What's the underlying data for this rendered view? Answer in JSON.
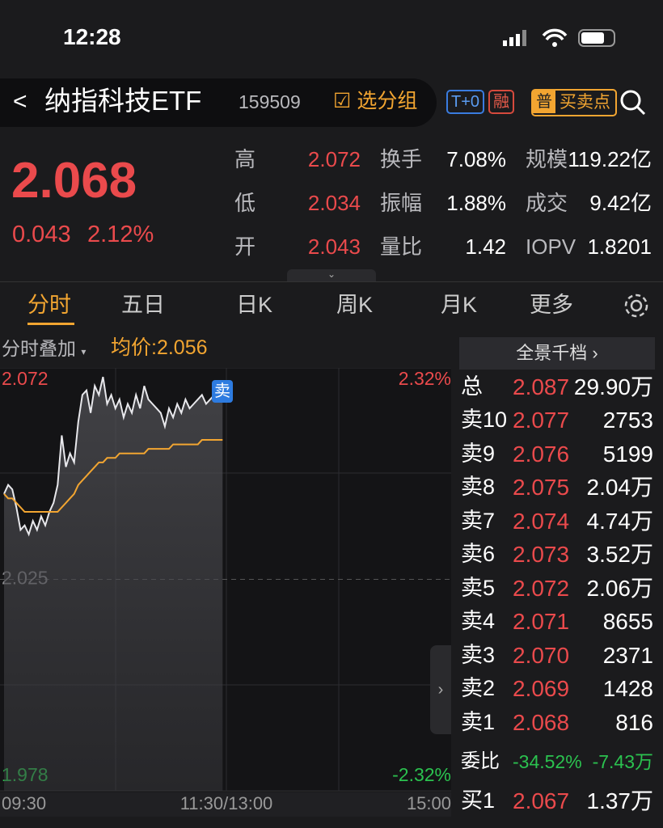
{
  "status_bar": {
    "time": "12:28"
  },
  "header": {
    "name": "纳指科技ETF",
    "code": "159509",
    "group": "选分组",
    "badges": [
      "T+0",
      "融"
    ],
    "trade_badge": "普",
    "trade_points": "买卖点"
  },
  "quote": {
    "price": "2.068",
    "change": "0.043",
    "change_pct": "2.12%",
    "stats": [
      [
        {
          "label": "高",
          "value": "2.072"
        },
        {
          "label": "换手",
          "value": "7.08%"
        },
        {
          "label": "规模",
          "value": "119.22亿"
        }
      ],
      [
        {
          "label": "低",
          "value": "2.034"
        },
        {
          "label": "振幅",
          "value": "1.88%"
        },
        {
          "label": "成交",
          "value": "9.42亿"
        }
      ],
      [
        {
          "label": "开",
          "value": "2.043"
        },
        {
          "label": "量比",
          "value": "1.42"
        },
        {
          "label": "IOPV",
          "value": "1.8201"
        }
      ]
    ]
  },
  "tabs": [
    "分时",
    "五日",
    "日K",
    "周K",
    "月K",
    "更多"
  ],
  "chart_data": {
    "type": "line",
    "overlay_label": "分时叠加",
    "avg_label": "均价:",
    "avg_value": "2.056",
    "annotation": "卖",
    "ylim": [
      1.978,
      2.072
    ],
    "yticks": [
      1.978,
      2.025,
      2.072
    ],
    "y2lim": [
      -2.32,
      2.32
    ],
    "y2ticks": [
      {
        "value": -2.32,
        "label": "-2.32%"
      },
      {
        "value": 2.32,
        "label": "2.32%"
      }
    ],
    "x_labels": [
      "09:30",
      "11:30/13:00",
      "15:00"
    ],
    "series": [
      {
        "color": "#e8e8ec",
        "values": [
          2.044,
          2.046,
          2.045,
          2.041,
          2.036,
          2.037,
          2.035,
          2.038,
          2.036,
          2.039,
          2.037,
          2.04,
          2.042,
          2.046,
          2.057,
          2.05,
          2.053,
          2.051,
          2.06,
          2.066,
          2.067,
          2.062,
          2.068,
          2.066,
          2.07,
          2.064,
          2.066,
          2.063,
          2.065,
          2.061,
          2.064,
          2.062,
          2.066,
          2.063,
          2.068,
          2.065,
          2.064,
          2.063,
          2.062,
          2.059,
          2.063,
          2.061,
          2.064,
          2.062,
          2.065,
          2.063,
          2.064,
          2.065,
          2.066,
          2.064,
          2.065,
          2.066,
          2.068,
          2.069
        ]
      },
      {
        "color": "#f2a531",
        "values": [
          2.044,
          2.043,
          2.043,
          2.042,
          2.041,
          2.04,
          2.04,
          2.04,
          2.04,
          2.04,
          2.04,
          2.04,
          2.04,
          2.04,
          2.041,
          2.042,
          2.043,
          2.044,
          2.046,
          2.047,
          2.048,
          2.049,
          2.05,
          2.051,
          2.051,
          2.052,
          2.052,
          2.052,
          2.053,
          2.053,
          2.053,
          2.053,
          2.053,
          2.053,
          2.053,
          2.054,
          2.054,
          2.054,
          2.054,
          2.054,
          2.054,
          2.055,
          2.055,
          2.055,
          2.055,
          2.055,
          2.055,
          2.055,
          2.056,
          2.056,
          2.056,
          2.056,
          2.056,
          2.056
        ]
      }
    ]
  },
  "order_book": {
    "title": "全景千档",
    "total": {
      "label": "总",
      "price": "2.087",
      "volume": "29.90万"
    },
    "asks": [
      {
        "label": "卖10",
        "price": "2.077",
        "volume": "2753"
      },
      {
        "label": "卖9",
        "price": "2.076",
        "volume": "5199"
      },
      {
        "label": "卖8",
        "price": "2.075",
        "volume": "2.04万"
      },
      {
        "label": "卖7",
        "price": "2.074",
        "volume": "4.74万"
      },
      {
        "label": "卖6",
        "price": "2.073",
        "volume": "3.52万"
      },
      {
        "label": "卖5",
        "price": "2.072",
        "volume": "2.06万"
      },
      {
        "label": "卖4",
        "price": "2.071",
        "volume": "8655"
      },
      {
        "label": "卖3",
        "price": "2.070",
        "volume": "2371"
      },
      {
        "label": "卖2",
        "price": "2.069",
        "volume": "1428"
      },
      {
        "label": "卖1",
        "price": "2.068",
        "volume": "816"
      }
    ],
    "ratio": {
      "label": "委比",
      "pct": "-34.52%",
      "volume": "-7.43万"
    },
    "bids": [
      {
        "label": "买1",
        "price": "2.067",
        "volume": "1.37万"
      }
    ]
  }
}
